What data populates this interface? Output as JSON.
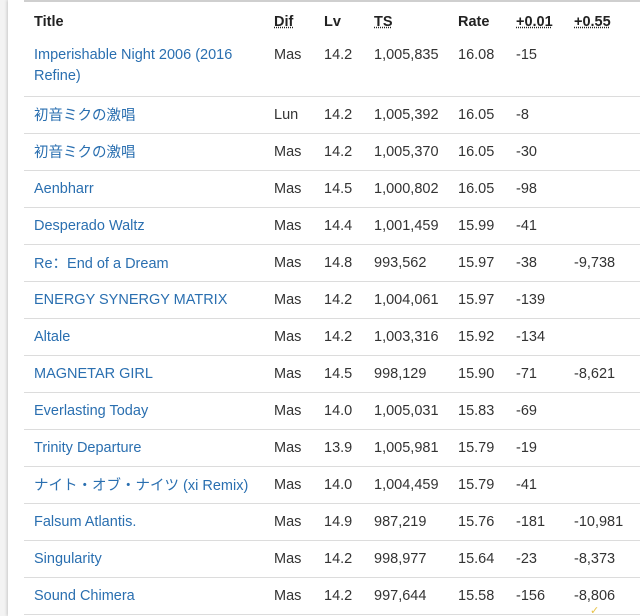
{
  "columns": {
    "title": "Title",
    "dif": "Dif",
    "lv": "Lv",
    "ts": "TS",
    "rate": "Rate",
    "plus001": "+0.01",
    "plus055": "+0.55"
  },
  "rows": [
    {
      "title": "Imperishable Night 2006 (2016 Refine)",
      "dif": "Mas",
      "lv": "14.2",
      "ts": "1,005,835",
      "rate": "16.08",
      "p1": "-15",
      "p2": ""
    },
    {
      "title": "初音ミクの激唱",
      "dif": "Lun",
      "lv": "14.2",
      "ts": "1,005,392",
      "rate": "16.05",
      "p1": "-8",
      "p2": ""
    },
    {
      "title": "初音ミクの激唱",
      "dif": "Mas",
      "lv": "14.2",
      "ts": "1,005,370",
      "rate": "16.05",
      "p1": "-30",
      "p2": ""
    },
    {
      "title": "Aenbharr",
      "dif": "Mas",
      "lv": "14.5",
      "ts": "1,000,802",
      "rate": "16.05",
      "p1": "-98",
      "p2": ""
    },
    {
      "title": "Desperado Waltz",
      "dif": "Mas",
      "lv": "14.4",
      "ts": "1,001,459",
      "rate": "15.99",
      "p1": "-41",
      "p2": ""
    },
    {
      "title": "Re：End of a Dream",
      "dif": "Mas",
      "lv": "14.8",
      "ts": "993,562",
      "rate": "15.97",
      "p1": "-38",
      "p2": "-9,738"
    },
    {
      "title": "ENERGY SYNERGY MATRIX",
      "dif": "Mas",
      "lv": "14.2",
      "ts": "1,004,061",
      "rate": "15.97",
      "p1": "-139",
      "p2": ""
    },
    {
      "title": "Altale",
      "dif": "Mas",
      "lv": "14.2",
      "ts": "1,003,316",
      "rate": "15.92",
      "p1": "-134",
      "p2": ""
    },
    {
      "title": "MAGNETAR GIRL",
      "dif": "Mas",
      "lv": "14.5",
      "ts": "998,129",
      "rate": "15.90",
      "p1": "-71",
      "p2": "-8,621"
    },
    {
      "title": "Everlasting Today",
      "dif": "Mas",
      "lv": "14.0",
      "ts": "1,005,031",
      "rate": "15.83",
      "p1": "-69",
      "p2": ""
    },
    {
      "title": "Trinity Departure",
      "dif": "Mas",
      "lv": "13.9",
      "ts": "1,005,981",
      "rate": "15.79",
      "p1": "-19",
      "p2": ""
    },
    {
      "title": "ナイト・オブ・ナイツ (xi Remix)",
      "dif": "Mas",
      "lv": "14.0",
      "ts": "1,004,459",
      "rate": "15.79",
      "p1": "-41",
      "p2": ""
    },
    {
      "title": "Falsum Atlantis.",
      "dif": "Mas",
      "lv": "14.9",
      "ts": "987,219",
      "rate": "15.76",
      "p1": "-181",
      "p2": "-10,981"
    },
    {
      "title": "Singularity",
      "dif": "Mas",
      "lv": "14.2",
      "ts": "998,977",
      "rate": "15.64",
      "p1": "-23",
      "p2": "-8,373"
    },
    {
      "title": "Sound Chimera",
      "dif": "Mas",
      "lv": "14.2",
      "ts": "997,644",
      "rate": "15.58",
      "p1": "-156",
      "p2": "-8,806"
    }
  ],
  "colors": {
    "link": "#2a6fb0",
    "text": "#333333",
    "sort_indicator": "#e8c34a"
  },
  "icons": {
    "sort_indicator": "check-mark-icon"
  }
}
